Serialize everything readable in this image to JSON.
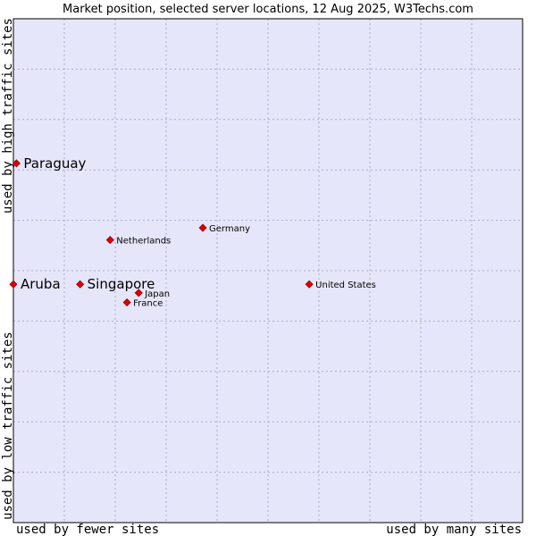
{
  "chart_data": {
    "type": "scatter",
    "title": "Market position, selected server locations, 12 Aug 2025, W3Techs.com",
    "xlabel_left": "used by fewer sites",
    "xlabel_right": "used by many sites",
    "ylabel_top": "used by high traffic sites",
    "ylabel_bottom": "used by low traffic sites",
    "xlim": [
      0,
      100
    ],
    "ylim": [
      0,
      100
    ],
    "grid": true,
    "colors": {
      "plot_bg": "#e6e6fa",
      "grid": "#aaaacc",
      "point": "#dd0000",
      "point_edge": "#990000",
      "text": "#000000",
      "border": "#000000"
    },
    "points": [
      {
        "label": "Paraguay",
        "x": 0.6,
        "y": 71.3,
        "size": "large"
      },
      {
        "label": "Aruba",
        "x": 0.0,
        "y": 47.3,
        "size": "large"
      },
      {
        "label": "Singapore",
        "x": 13.1,
        "y": 47.3,
        "size": "large"
      },
      {
        "label": "Germany",
        "x": 37.2,
        "y": 58.5,
        "size": "small"
      },
      {
        "label": "Netherlands",
        "x": 19.0,
        "y": 56.1,
        "size": "small"
      },
      {
        "label": "United States",
        "x": 58.1,
        "y": 47.3,
        "size": "small"
      },
      {
        "label": "Japan",
        "x": 24.6,
        "y": 45.6,
        "size": "small"
      },
      {
        "label": "France",
        "x": 22.3,
        "y": 43.7,
        "size": "small"
      }
    ]
  }
}
